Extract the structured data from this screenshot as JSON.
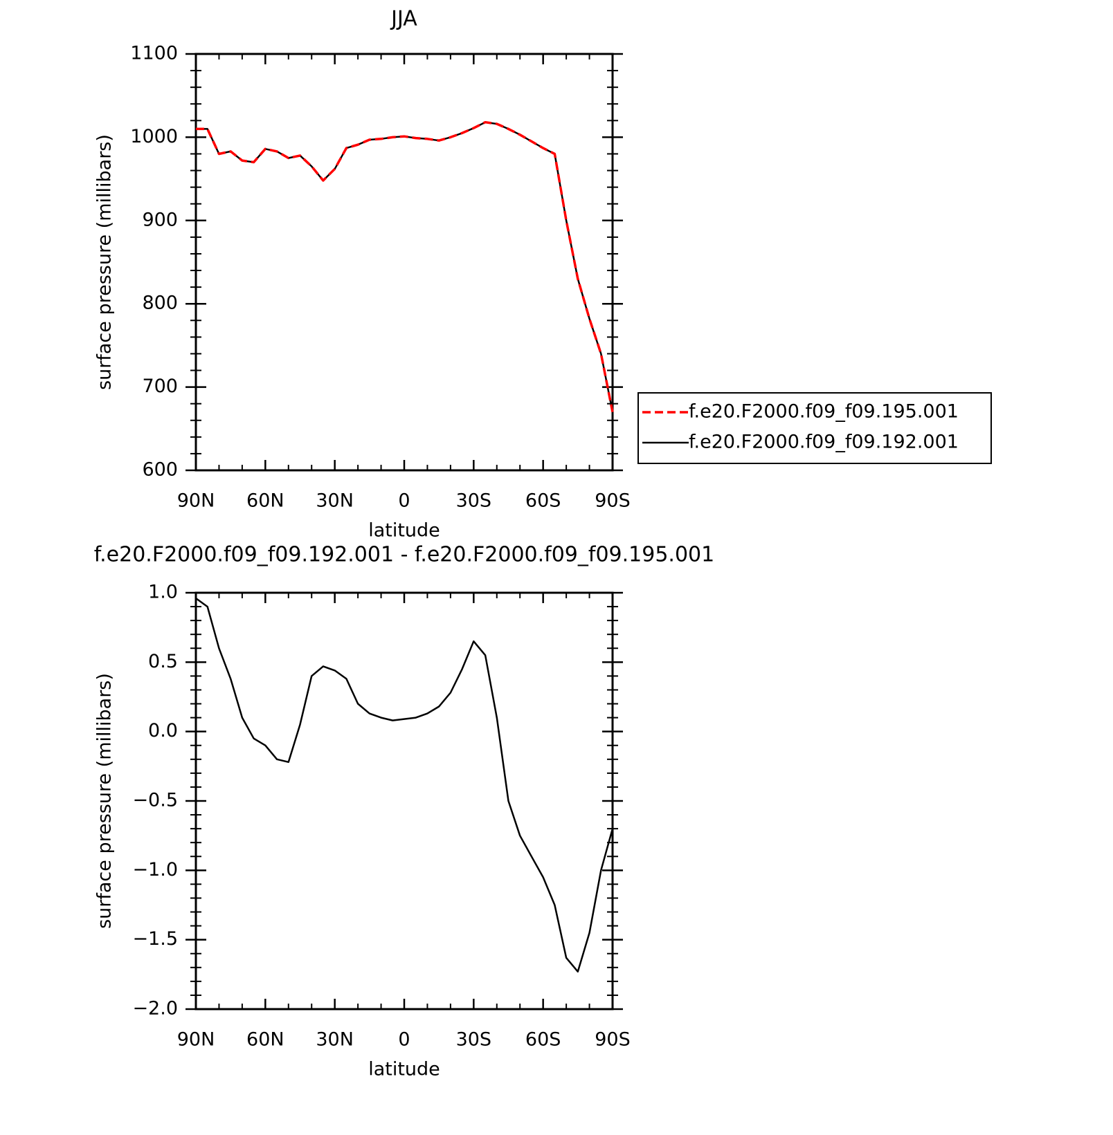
{
  "chart_data": [
    {
      "type": "line",
      "title": "JJA",
      "xlabel": "latitude",
      "ylabel": "surface pressure (millibars)",
      "x": [
        90,
        85,
        80,
        75,
        70,
        65,
        60,
        55,
        50,
        45,
        40,
        35,
        30,
        25,
        20,
        15,
        10,
        5,
        0,
        -5,
        -10,
        -15,
        -20,
        -25,
        -30,
        -35,
        -40,
        -45,
        -50,
        -55,
        -60,
        -65,
        -70,
        -75,
        -80,
        -85,
        -90
      ],
      "xlim": [
        90,
        -90
      ],
      "xticks": [
        {
          "value": 90,
          "label": "90N"
        },
        {
          "value": 60,
          "label": "60N"
        },
        {
          "value": 30,
          "label": "30N"
        },
        0,
        {
          "value": -30,
          "label": "30S"
        },
        {
          "value": -60,
          "label": "60S"
        },
        {
          "value": -90,
          "label": "90S"
        }
      ],
      "xminorticks": [
        80,
        70,
        50,
        40,
        20,
        10,
        -10,
        -20,
        -40,
        -50,
        -70,
        -80
      ],
      "ylim": [
        600,
        1100
      ],
      "yticks": [
        600,
        700,
        800,
        900,
        1000,
        1100
      ],
      "yminorticks": [
        620,
        640,
        660,
        680,
        720,
        740,
        760,
        780,
        820,
        840,
        860,
        880,
        920,
        940,
        960,
        980,
        1020,
        1040,
        1060,
        1080
      ],
      "legend": "right",
      "series": [
        {
          "name": "f.e20.F2000.f09_f09.195.001",
          "color": "#ff0000",
          "dash": true,
          "values": [
            1010,
            1010,
            980,
            983,
            972,
            970,
            986,
            983,
            975,
            978,
            965,
            948,
            962,
            987,
            991,
            997,
            998,
            1000,
            1001,
            999,
            998,
            996,
            1000,
            1005,
            1011,
            1018,
            1016,
            1010,
            1003,
            995,
            987,
            980,
            900,
            830,
            782,
            740,
            670
          ]
        },
        {
          "name": "f.e20.F2000.f09_f09.192.001",
          "color": "#000000",
          "dash": false,
          "values": [
            1010,
            1010,
            980,
            983,
            972,
            970,
            986,
            983,
            975,
            978,
            965,
            948,
            962,
            987,
            991,
            997,
            998,
            1000,
            1001,
            999,
            998,
            996,
            1000,
            1005,
            1011,
            1018,
            1016,
            1010,
            1003,
            995,
            987,
            980,
            900,
            830,
            782,
            740,
            670
          ]
        }
      ]
    },
    {
      "type": "line",
      "title": "f.e20.F2000.f09_f09.192.001 - f.e20.F2000.f09_f09.195.001",
      "xlabel": "latitude",
      "ylabel": "surface pressure (millibars)",
      "x": [
        90,
        85,
        80,
        75,
        70,
        65,
        60,
        55,
        50,
        45,
        40,
        35,
        30,
        25,
        20,
        15,
        10,
        5,
        0,
        -5,
        -10,
        -15,
        -20,
        -25,
        -30,
        -35,
        -40,
        -45,
        -50,
        -55,
        -60,
        -65,
        -70,
        -75,
        -80,
        -85,
        -90
      ],
      "xlim": [
        90,
        -90
      ],
      "xticks": [
        {
          "value": 90,
          "label": "90N"
        },
        {
          "value": 60,
          "label": "60N"
        },
        {
          "value": 30,
          "label": "30N"
        },
        0,
        {
          "value": -30,
          "label": "30S"
        },
        {
          "value": -60,
          "label": "60S"
        },
        {
          "value": -90,
          "label": "90S"
        }
      ],
      "xminorticks": [
        80,
        70,
        50,
        40,
        20,
        10,
        -10,
        -20,
        -40,
        -50,
        -70,
        -80
      ],
      "ylim": [
        -2,
        1
      ],
      "yticks": [
        {
          "value": -2,
          "label": "−2.0"
        },
        {
          "value": -1.5,
          "label": "−1.5"
        },
        {
          "value": -1,
          "label": "−1.0"
        },
        {
          "value": -0.5,
          "label": "−0.5"
        },
        {
          "value": 0,
          "label": "0.0"
        },
        0.5,
        {
          "value": 1,
          "label": "1.0"
        }
      ],
      "yminorticks": [
        -1.9,
        -1.8,
        -1.7,
        -1.6,
        -1.4,
        -1.3,
        -1.2,
        -1.1,
        -0.9,
        -0.8,
        -0.7,
        -0.6,
        -0.4,
        -0.3,
        -0.2,
        -0.1,
        0.1,
        0.2,
        0.3,
        0.4,
        0.6,
        0.7,
        0.8,
        0.9
      ],
      "series": [
        {
          "color": "#000000",
          "dash": false,
          "values": [
            0.96,
            0.9,
            0.6,
            0.38,
            0.1,
            -0.05,
            -0.1,
            -0.2,
            -0.22,
            0.05,
            0.4,
            0.47,
            0.44,
            0.38,
            0.2,
            0.13,
            0.1,
            0.08,
            0.09,
            0.1,
            0.13,
            0.18,
            0.28,
            0.45,
            0.65,
            0.55,
            0.1,
            -0.5,
            -0.75,
            -0.9,
            -1.05,
            -1.25,
            -1.63,
            -1.73,
            -1.45,
            -1.0,
            -0.7
          ]
        }
      ]
    }
  ]
}
